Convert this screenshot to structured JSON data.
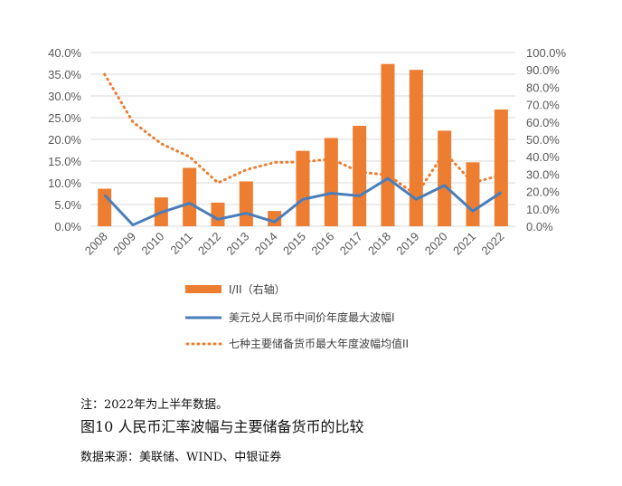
{
  "chart_data": {
    "type": "bar",
    "categories": [
      "2008",
      "2009",
      "2010",
      "2011",
      "2012",
      "2013",
      "2014",
      "2015",
      "2016",
      "2017",
      "2018",
      "2019",
      "2020",
      "2021",
      "2022"
    ],
    "series": [
      {
        "name": "I/II（右轴）",
        "kind": "bar",
        "axis": "right",
        "values": [
          21.6,
          0.0,
          16.6,
          33.6,
          13.6,
          25.8,
          8.8,
          43.4,
          50.8,
          57.8,
          93.4,
          90.0,
          55.0,
          36.8,
          67.2
        ]
      },
      {
        "name": "美元兑人民币中间价年度最大波幅I",
        "kind": "line",
        "axis": "left",
        "values": [
          7.2,
          0.3,
          3.2,
          5.3,
          1.6,
          3.0,
          1.0,
          6.2,
          7.6,
          7.0,
          11.0,
          6.2,
          9.4,
          3.5,
          7.8
        ]
      },
      {
        "name": "七种主要储备货币最大年度波幅均值II",
        "kind": "dotted",
        "axis": "left",
        "values": [
          35.0,
          24.0,
          19.0,
          16.0,
          10.0,
          13.0,
          14.7,
          14.8,
          15.5,
          12.5,
          11.8,
          7.2,
          17.0,
          10.0,
          11.8
        ]
      }
    ],
    "y_left": {
      "min": 0,
      "max": 40,
      "step": 5,
      "tick_labels": [
        "0.0%",
        "5.0%",
        "10.0%",
        "15.0%",
        "20.0%",
        "25.0%",
        "30.0%",
        "35.0%",
        "40.0%"
      ]
    },
    "y_right": {
      "min": 0,
      "max": 100,
      "step": 10,
      "tick_labels": [
        "0.0%",
        "10.0%",
        "20.0%",
        "30.0%",
        "40.0%",
        "50.0%",
        "60.0%",
        "70.0%",
        "80.0%",
        "90.0%",
        "100.0%"
      ]
    },
    "grid": true,
    "legend_position": "bottom",
    "colors": {
      "bar": "#ED7D31",
      "line": "#4A7EBB",
      "dotted": "#ED7D31",
      "grid": "#D9D9D9",
      "text": "#595959"
    }
  },
  "note": "注：2022年为上半年数据。",
  "caption": "图10  人民币汇率波幅与主要储备货币的比较",
  "source": "数据来源：美联储、WIND、中银证券"
}
